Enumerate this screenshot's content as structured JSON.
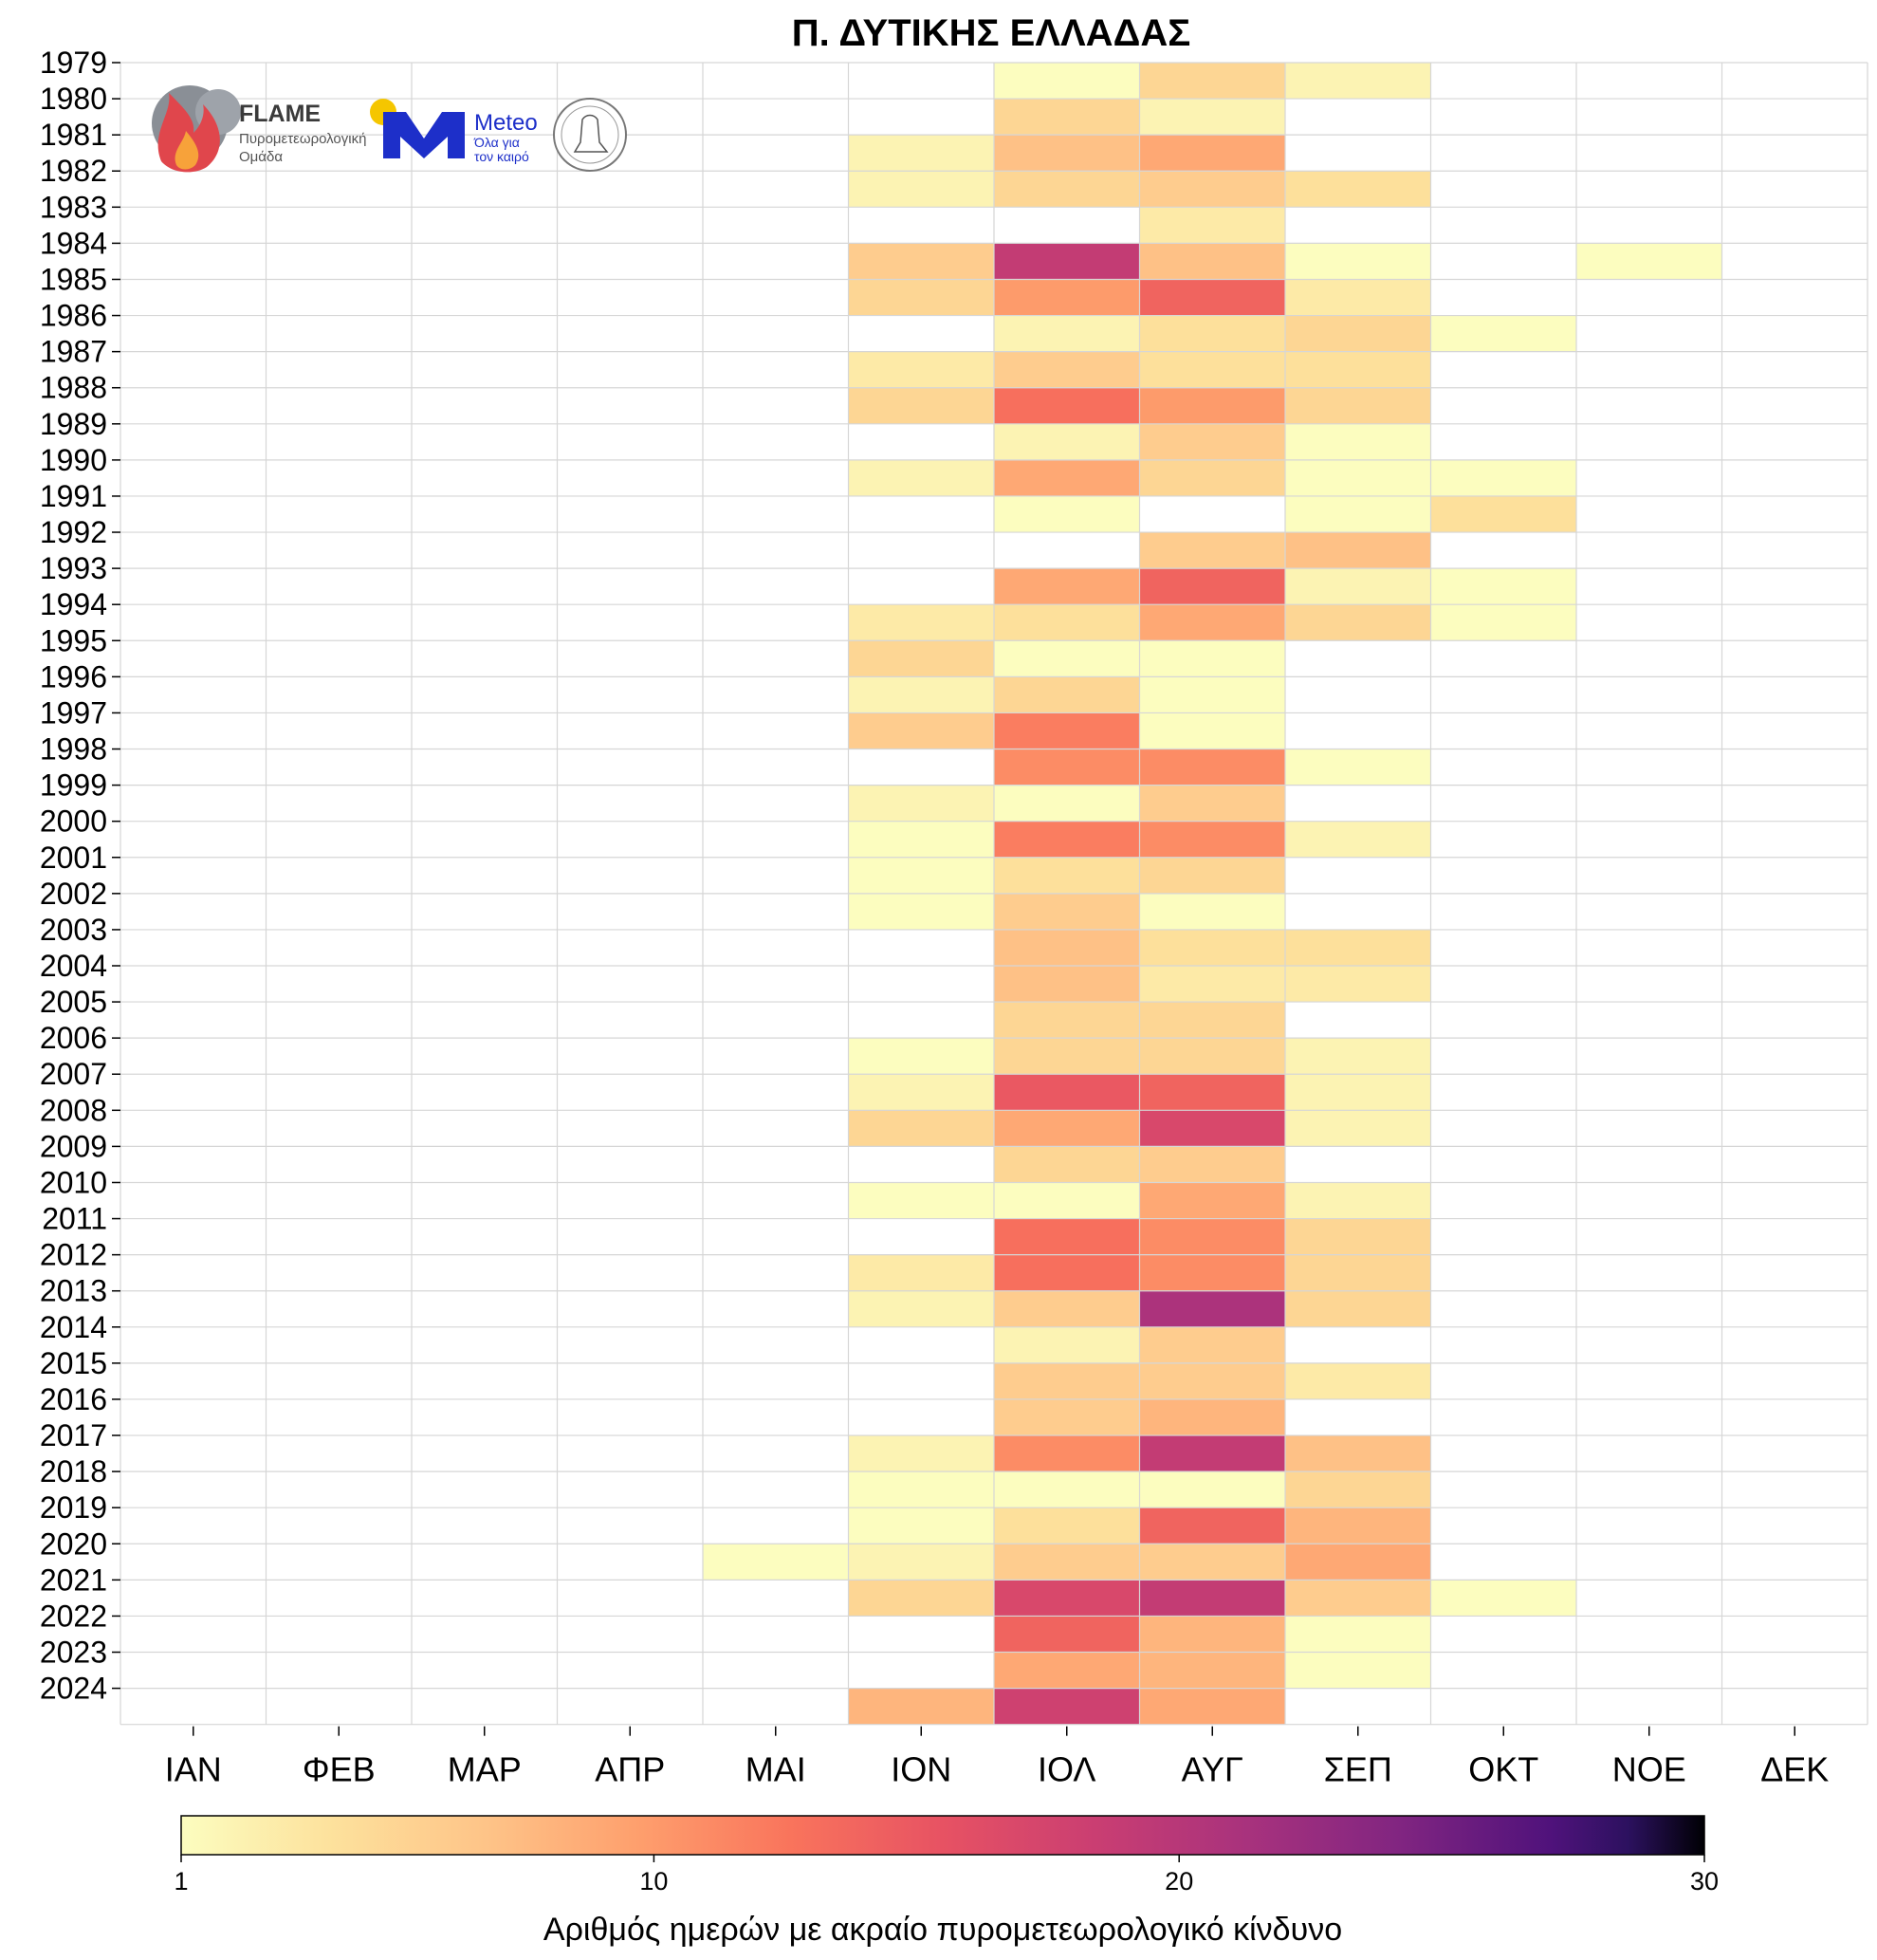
{
  "chart_data": {
    "type": "heatmap",
    "title": "Π. ΔΥΤΙΚΗΣ ΕΛΛΑΔΑΣ",
    "months": [
      "ΙΑΝ",
      "ΦΕΒ",
      "ΜΑΡ",
      "ΑΠΡ",
      "ΜΑΙ",
      "ΙΟΝ",
      "ΙΟΛ",
      "ΑΥΓ",
      "ΣΕΠ",
      "ΟΚΤ",
      "ΝΟΕ",
      "ΔΕΚ"
    ],
    "years": [
      "1979",
      "1980",
      "1981",
      "1982",
      "1983",
      "1984",
      "1985",
      "1986",
      "1987",
      "1988",
      "1989",
      "1990",
      "1991",
      "1992",
      "1993",
      "1994",
      "1995",
      "1996",
      "1997",
      "1998",
      "1999",
      "2000",
      "2001",
      "2002",
      "2003",
      "2004",
      "2005",
      "2006",
      "2007",
      "2008",
      "2009",
      "2010",
      "2011",
      "2012",
      "2013",
      "2014",
      "2015",
      "2016",
      "2017",
      "2018",
      "2019",
      "2020",
      "2021",
      "2022",
      "2023",
      "2024"
    ],
    "values": [
      [
        0,
        0,
        0,
        0,
        0,
        0,
        1,
        5,
        2,
        0,
        0,
        0
      ],
      [
        0,
        0,
        0,
        0,
        0,
        0,
        5,
        2,
        0,
        0,
        0,
        0
      ],
      [
        0,
        0,
        0,
        0,
        0,
        2,
        7,
        9,
        0,
        0,
        0,
        0
      ],
      [
        0,
        0,
        0,
        0,
        0,
        2,
        5,
        6,
        4,
        0,
        0,
        0
      ],
      [
        0,
        0,
        0,
        0,
        0,
        0,
        0,
        3,
        0,
        0,
        0,
        0
      ],
      [
        0,
        0,
        0,
        0,
        0,
        6,
        19,
        7,
        1,
        0,
        1,
        0
      ],
      [
        0,
        0,
        0,
        0,
        0,
        5,
        10,
        14,
        3,
        0,
        0,
        0
      ],
      [
        0,
        0,
        0,
        0,
        0,
        0,
        2,
        4,
        5,
        1,
        0,
        0
      ],
      [
        0,
        0,
        0,
        0,
        0,
        3,
        6,
        4,
        4,
        0,
        0,
        0
      ],
      [
        0,
        0,
        0,
        0,
        0,
        5,
        13,
        10,
        5,
        0,
        0,
        0
      ],
      [
        0,
        0,
        0,
        0,
        0,
        0,
        2,
        6,
        1,
        0,
        0,
        0
      ],
      [
        0,
        0,
        0,
        0,
        0,
        2,
        9,
        5,
        1,
        1,
        0,
        0
      ],
      [
        0,
        0,
        0,
        0,
        0,
        0,
        1,
        0,
        1,
        4,
        0,
        0
      ],
      [
        0,
        0,
        0,
        0,
        0,
        0,
        0,
        6,
        7,
        0,
        0,
        0
      ],
      [
        0,
        0,
        0,
        0,
        0,
        0,
        9,
        14,
        2,
        1,
        0,
        0
      ],
      [
        0,
        0,
        0,
        0,
        0,
        3,
        4,
        9,
        5,
        1,
        0,
        0
      ],
      [
        0,
        0,
        0,
        0,
        0,
        5,
        1,
        1,
        0,
        0,
        0,
        0
      ],
      [
        0,
        0,
        0,
        0,
        0,
        2,
        5,
        1,
        0,
        0,
        0,
        0
      ],
      [
        0,
        0,
        0,
        0,
        0,
        6,
        12,
        1,
        0,
        0,
        0,
        0
      ],
      [
        0,
        0,
        0,
        0,
        0,
        0,
        11,
        11,
        1,
        0,
        0,
        0
      ],
      [
        0,
        0,
        0,
        0,
        0,
        2,
        1,
        6,
        0,
        0,
        0,
        0
      ],
      [
        0,
        0,
        0,
        0,
        0,
        1,
        12,
        11,
        2,
        0,
        0,
        0
      ],
      [
        0,
        0,
        0,
        0,
        0,
        1,
        4,
        5,
        0,
        0,
        0,
        0
      ],
      [
        0,
        0,
        0,
        0,
        0,
        1,
        6,
        1,
        0,
        0,
        0,
        0
      ],
      [
        0,
        0,
        0,
        0,
        0,
        0,
        7,
        4,
        4,
        0,
        0,
        0
      ],
      [
        0,
        0,
        0,
        0,
        0,
        0,
        7,
        3,
        3,
        0,
        0,
        0
      ],
      [
        0,
        0,
        0,
        0,
        0,
        0,
        5,
        5,
        0,
        0,
        0,
        0
      ],
      [
        0,
        0,
        0,
        0,
        0,
        1,
        5,
        5,
        2,
        0,
        0,
        0
      ],
      [
        0,
        0,
        0,
        0,
        0,
        2,
        15,
        14,
        2,
        0,
        0,
        0
      ],
      [
        0,
        0,
        0,
        0,
        0,
        5,
        9,
        17,
        2,
        0,
        0,
        0
      ],
      [
        0,
        0,
        0,
        0,
        0,
        0,
        5,
        6,
        0,
        0,
        0,
        0
      ],
      [
        0,
        0,
        0,
        0,
        0,
        1,
        1,
        9,
        2,
        0,
        0,
        0
      ],
      [
        0,
        0,
        0,
        0,
        0,
        0,
        13,
        11,
        5,
        0,
        0,
        0
      ],
      [
        0,
        0,
        0,
        0,
        0,
        3,
        13,
        11,
        5,
        0,
        0,
        0
      ],
      [
        0,
        0,
        0,
        0,
        0,
        2,
        6,
        21,
        5,
        0,
        0,
        0
      ],
      [
        0,
        0,
        0,
        0,
        0,
        0,
        2,
        6,
        0,
        0,
        0,
        0
      ],
      [
        0,
        0,
        0,
        0,
        0,
        0,
        6,
        6,
        3,
        0,
        0,
        0
      ],
      [
        0,
        0,
        0,
        0,
        0,
        0,
        6,
        8,
        0,
        0,
        0,
        0
      ],
      [
        0,
        0,
        0,
        0,
        0,
        2,
        11,
        19,
        7,
        0,
        0,
        0
      ],
      [
        0,
        0,
        0,
        0,
        0,
        1,
        1,
        1,
        5,
        0,
        0,
        0
      ],
      [
        0,
        0,
        0,
        0,
        0,
        1,
        4,
        14,
        8,
        0,
        0,
        0
      ],
      [
        0,
        0,
        0,
        0,
        1,
        2,
        6,
        6,
        9,
        0,
        0,
        0
      ],
      [
        0,
        0,
        0,
        0,
        0,
        5,
        17,
        19,
        6,
        1,
        0,
        0
      ],
      [
        0,
        0,
        0,
        0,
        0,
        0,
        14,
        8,
        1,
        0,
        0,
        0
      ],
      [
        0,
        0,
        0,
        0,
        0,
        0,
        9,
        8,
        1,
        0,
        0,
        0
      ],
      [
        0,
        0,
        0,
        0,
        0,
        8,
        18,
        9,
        0,
        0,
        0,
        0
      ]
    ],
    "colorbar": {
      "label": "Αριθμός ημερών με ακραίο πυρομετεωρολογικό κίνδυνο",
      "min": 1,
      "max": 30,
      "ticks": [
        "1",
        "10",
        "20",
        "30"
      ],
      "colormap": "magma_r"
    }
  },
  "logos": {
    "flame_name": "FLAME",
    "flame_sub1": "Πυρομετεωρολογική",
    "flame_sub2": "Ομάδα",
    "meteo_name": "Meteo",
    "meteo_sub1": "Όλα για",
    "meteo_sub2": "τον καιρό"
  }
}
